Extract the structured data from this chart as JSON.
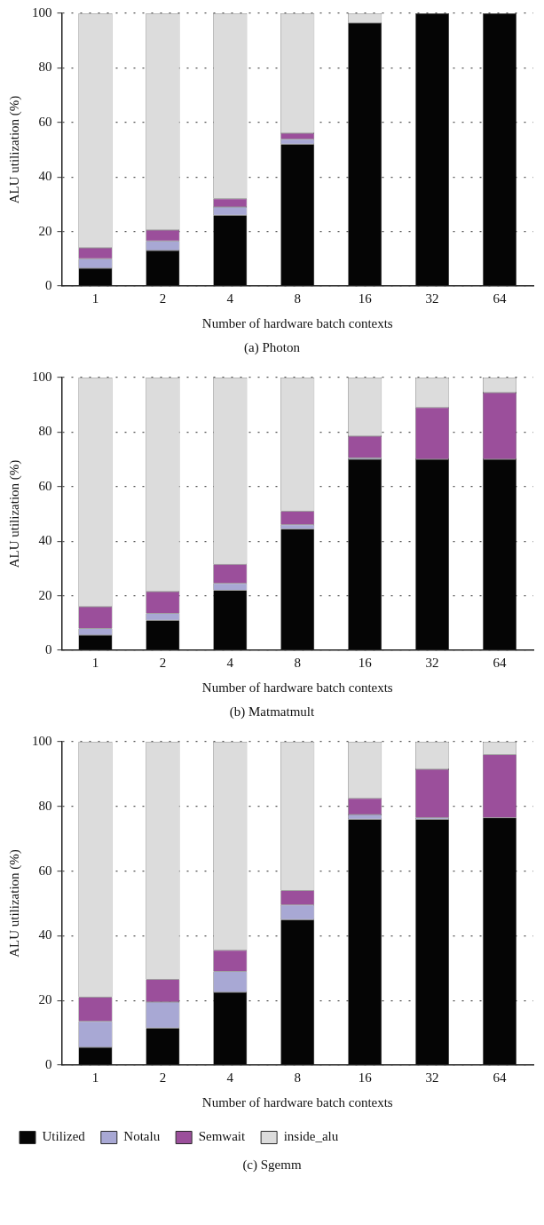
{
  "chart_data": [
    {
      "type": "bar",
      "title": "(a) Photon",
      "xlabel": "Number of hardware batch contexts",
      "ylabel": "ALU utilization (%)",
      "categories": [
        "1",
        "2",
        "4",
        "8",
        "16",
        "32",
        "64"
      ],
      "stacked": true,
      "ylim": [
        0,
        100
      ],
      "yticks": [
        0,
        20,
        40,
        60,
        80,
        100
      ],
      "grid": "y",
      "legend": false,
      "series": [
        {
          "color": "#050505",
          "values": [
            6.5,
            13,
            26,
            52,
            96.5,
            100,
            100
          ]
        },
        {
          "color": "#a8a8d4",
          "values": [
            3.5,
            3.5,
            3,
            1.8,
            0,
            0,
            0
          ]
        },
        {
          "color": "#9b4f9b",
          "values": [
            4,
            4,
            3,
            2.2,
            0,
            0,
            0
          ]
        },
        {
          "color": "#dcdcdc",
          "values": [
            86,
            79.5,
            68,
            44,
            3.5,
            0,
            0
          ]
        }
      ]
    },
    {
      "type": "bar",
      "title": "(b) Matmatmult",
      "xlabel": "Number of hardware batch contexts",
      "ylabel": "ALU utilization (%)",
      "categories": [
        "1",
        "2",
        "4",
        "8",
        "16",
        "32",
        "64"
      ],
      "stacked": true,
      "ylim": [
        0,
        100
      ],
      "yticks": [
        0,
        20,
        40,
        60,
        80,
        100
      ],
      "grid": "y",
      "legend": false,
      "series": [
        {
          "color": "#050505",
          "values": [
            5.5,
            11,
            22,
            44.5,
            70,
            70,
            70
          ]
        },
        {
          "color": "#a8a8d4",
          "values": [
            2.5,
            2.5,
            2.5,
            1.5,
            0.5,
            0,
            0
          ]
        },
        {
          "color": "#9b4f9b",
          "values": [
            8,
            8,
            7,
            5,
            8,
            19,
            24.5
          ]
        },
        {
          "color": "#dcdcdc",
          "values": [
            84,
            78.5,
            68.5,
            49,
            21.5,
            11,
            5.5
          ]
        }
      ]
    },
    {
      "type": "bar",
      "title": "(c) Sgemm",
      "xlabel": "Number of hardware batch contexts",
      "ylabel": "ALU utilization (%)",
      "categories": [
        "1",
        "2",
        "4",
        "8",
        "16",
        "32",
        "64"
      ],
      "stacked": true,
      "ylim": [
        0,
        100
      ],
      "yticks": [
        0,
        20,
        40,
        60,
        80,
        100
      ],
      "grid": "y",
      "legend": "bottom",
      "series": [
        {
          "name": "Utilized",
          "color": "#050505",
          "values": [
            5.5,
            11.5,
            22.5,
            45,
            76,
            76,
            76.5
          ]
        },
        {
          "name": "Notalu",
          "color": "#a8a8d4",
          "values": [
            8,
            8,
            6.5,
            4.5,
            1.5,
            0.5,
            0
          ]
        },
        {
          "name": "Semwait",
          "color": "#9b4f9b",
          "values": [
            7.5,
            7,
            6.5,
            4.5,
            5,
            15,
            19.5
          ]
        },
        {
          "name": "inside_alu",
          "color": "#dcdcdc",
          "values": [
            79,
            73.5,
            64.5,
            46,
            17.5,
            8.5,
            4
          ]
        }
      ]
    }
  ]
}
